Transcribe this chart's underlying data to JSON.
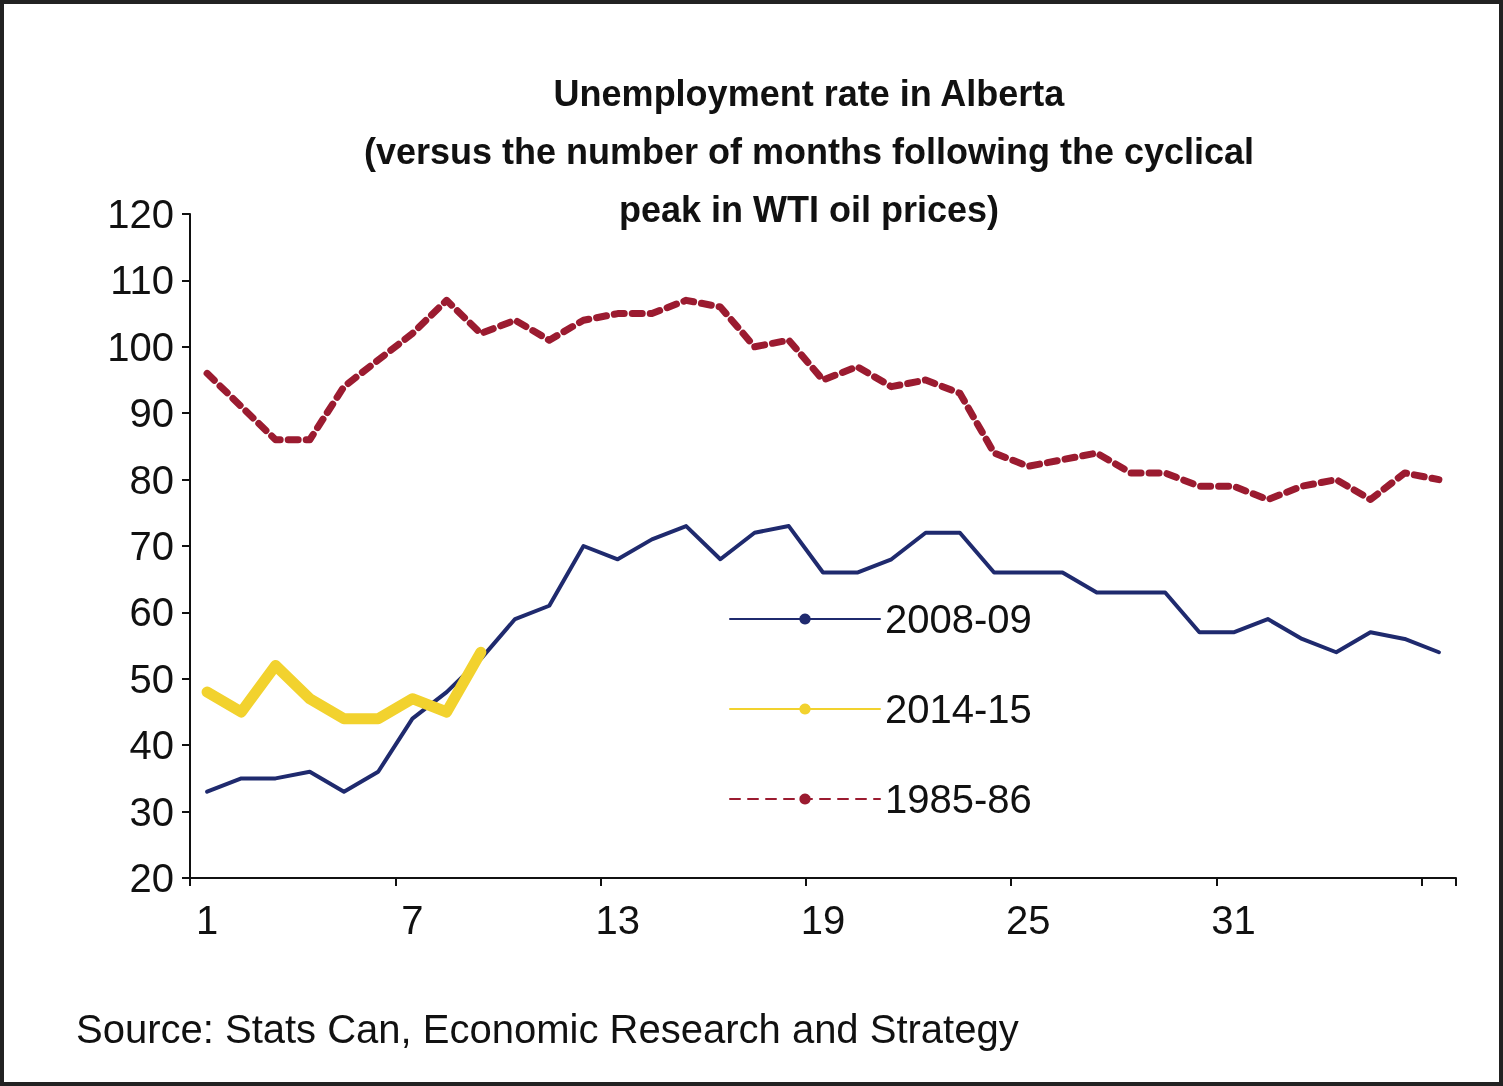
{
  "chart_data": {
    "type": "line",
    "title": "Unemployment rate in Alberta\n(versus the number of months following the cyclical\npeak in WTI oil prices)",
    "categories": [
      "1",
      null,
      null,
      null,
      null,
      null,
      "7",
      null,
      null,
      null,
      null,
      null,
      "13",
      null,
      null,
      null,
      null,
      null,
      "19",
      null,
      null,
      null,
      null,
      null,
      "25",
      null,
      null,
      null,
      null,
      null,
      "31",
      null,
      null,
      null,
      null,
      null,
      null
    ],
    "series": [
      {
        "name": "2008-09",
        "color": "#1f2a6e",
        "line_style": "solid",
        "values": [
          33,
          35,
          35,
          36,
          33,
          36,
          44,
          48,
          53,
          59,
          61,
          70,
          68,
          71,
          73,
          68,
          72,
          73,
          66,
          66,
          68,
          72,
          72,
          66,
          66,
          66,
          63,
          63,
          63,
          57,
          57,
          59,
          56,
          54,
          57,
          56,
          54
        ]
      },
      {
        "name": "2014-15",
        "color": "#f2d22e",
        "line_style": "solid",
        "values": [
          48,
          45,
          52,
          47,
          44,
          44,
          47,
          45,
          54,
          null,
          null,
          null,
          null,
          null,
          null,
          null,
          null,
          null,
          null,
          null,
          null,
          null,
          null,
          null,
          null,
          null,
          null,
          null,
          null,
          null,
          null,
          null,
          null,
          null,
          null,
          null,
          null
        ]
      },
      {
        "name": "1985-86",
        "color": "#9b1b30",
        "line_style": "dashed",
        "values": [
          96,
          91,
          86,
          86,
          94,
          98,
          102,
          107,
          102,
          104,
          101,
          104,
          105,
          105,
          107,
          106,
          100,
          101,
          95,
          97,
          94,
          95,
          93,
          84,
          82,
          83,
          84,
          81,
          81,
          79,
          79,
          77,
          79,
          80,
          77,
          81,
          80
        ]
      }
    ],
    "ylim": [
      20,
      120
    ],
    "yticks": [
      20,
      30,
      40,
      50,
      60,
      70,
      80,
      90,
      100,
      110,
      120
    ],
    "grid": false,
    "legend": "right",
    "marker": "none",
    "annotations": [
      "Source: Stats Can, Economic Research and Strategy"
    ]
  }
}
